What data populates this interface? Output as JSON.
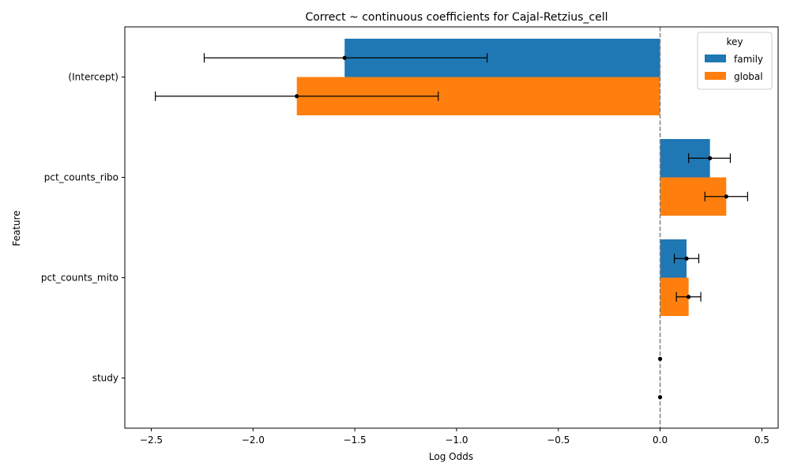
{
  "chart_data": {
    "type": "bar",
    "orientation": "horizontal",
    "title": "Correct ~ continuous coefficients for Cajal-Retzius_cell",
    "xlabel": "Log Odds",
    "ylabel": "Feature",
    "xlim": [
      -2.63,
      0.58
    ],
    "xticks": [
      -2.5,
      -2.0,
      -1.5,
      -1.0,
      -0.5,
      0.0,
      0.5
    ],
    "xtick_labels": [
      "−2.5",
      "−2.0",
      "−1.5",
      "−1.0",
      "−0.5",
      "0.0",
      "0.5"
    ],
    "categories": [
      "(Intercept)",
      "pct_counts_ribo",
      "pct_counts_mito",
      "study"
    ],
    "legend": {
      "title": "key",
      "position": "upper right"
    },
    "reference_line": {
      "x": 0.0,
      "style": "dashed",
      "color": "#808080"
    },
    "series": [
      {
        "name": "family",
        "color": "#1f77b4",
        "values": [
          -1.55,
          0.245,
          0.13,
          0.0
        ],
        "ci_low": [
          -2.24,
          0.14,
          0.07,
          0.0
        ],
        "ci_high": [
          -0.85,
          0.345,
          0.19,
          0.0
        ]
      },
      {
        "name": "global",
        "color": "#ff7f0e",
        "values": [
          -1.785,
          0.325,
          0.14,
          0.0
        ],
        "ci_low": [
          -2.48,
          0.22,
          0.08,
          0.0
        ],
        "ci_high": [
          -1.09,
          0.43,
          0.2,
          0.0
        ]
      }
    ]
  }
}
